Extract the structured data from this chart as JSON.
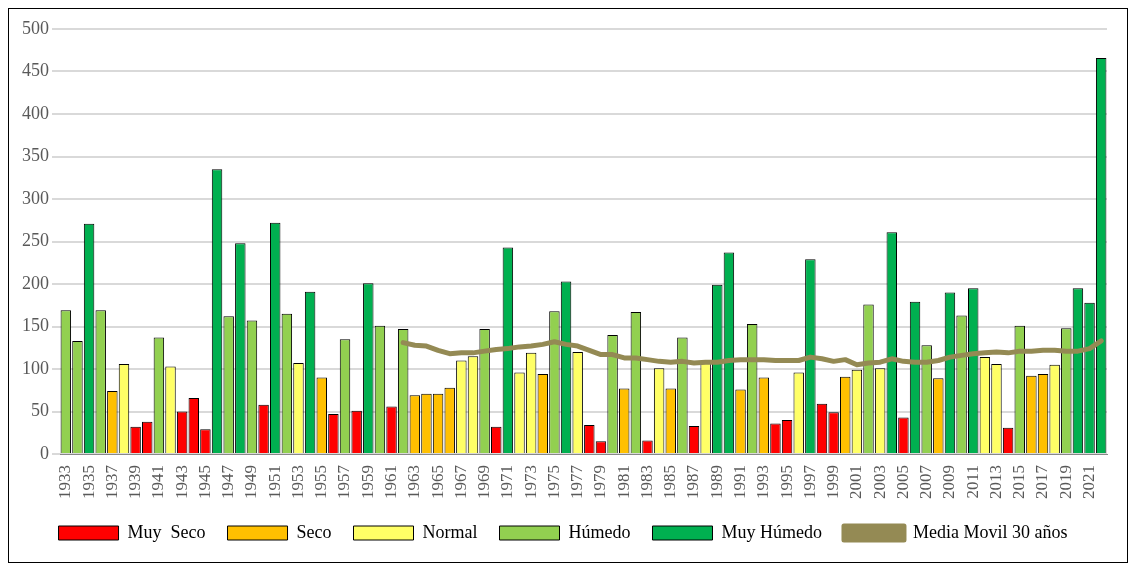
{
  "chart_data": {
    "type": "bar",
    "categories": [
      "1933",
      null,
      "1935",
      null,
      "1937",
      null,
      "1939",
      null,
      "1941",
      null,
      "1943",
      null,
      "1945",
      null,
      "1947",
      null,
      "1949",
      null,
      "1951",
      null,
      "1953",
      null,
      "1955",
      null,
      "1957",
      null,
      "1959",
      null,
      "1961",
      null,
      "1963",
      null,
      "1965",
      null,
      "1967",
      null,
      "1969",
      null,
      "1971",
      null,
      "1973",
      null,
      "1975",
      null,
      "1977",
      null,
      "1979",
      null,
      "1981",
      null,
      "1983",
      null,
      "1985",
      null,
      "1987",
      null,
      "1989",
      null,
      "1991",
      null,
      "1993",
      null,
      "1995",
      null,
      "1997",
      null,
      "1999",
      null,
      "2001",
      null,
      "2003",
      null,
      "2005",
      null,
      "2007",
      null,
      "2009",
      null,
      "2011",
      null,
      "2013",
      null,
      "2015",
      null,
      "2017",
      null,
      "2019",
      null,
      "2021",
      null
    ],
    "series": [
      {
        "name": "Muy  Seco",
        "color": "#ff0000",
        "values": [
          null,
          null,
          null,
          null,
          null,
          null,
          32,
          38,
          null,
          null,
          50,
          66,
          29,
          null,
          null,
          null,
          null,
          58,
          null,
          null,
          null,
          null,
          null,
          47,
          null,
          51,
          null,
          null,
          56,
          null,
          null,
          null,
          null,
          null,
          null,
          null,
          null,
          32,
          null,
          null,
          null,
          null,
          null,
          null,
          null,
          34,
          15,
          null,
          null,
          null,
          16,
          null,
          null,
          null,
          33,
          null,
          null,
          null,
          null,
          null,
          null,
          36,
          40,
          null,
          null,
          59,
          49,
          null,
          null,
          null,
          null,
          null,
          43,
          null,
          null,
          null,
          null,
          null,
          null,
          null,
          null,
          31,
          null,
          null,
          null,
          null,
          null,
          null,
          null,
          null
        ]
      },
      {
        "name": "Seco",
        "color": "#ffc000",
        "values": [
          null,
          null,
          null,
          null,
          74,
          null,
          null,
          null,
          null,
          null,
          null,
          null,
          null,
          null,
          null,
          null,
          null,
          null,
          null,
          null,
          null,
          null,
          90,
          null,
          null,
          null,
          null,
          null,
          null,
          null,
          69,
          71,
          71,
          78,
          null,
          null,
          null,
          null,
          null,
          null,
          null,
          94,
          null,
          null,
          null,
          null,
          null,
          null,
          77,
          null,
          null,
          null,
          77,
          null,
          null,
          null,
          null,
          null,
          76,
          null,
          90,
          null,
          null,
          null,
          null,
          null,
          null,
          91,
          null,
          null,
          null,
          null,
          null,
          null,
          null,
          89,
          null,
          null,
          null,
          null,
          null,
          null,
          null,
          92,
          94,
          null,
          null,
          null,
          null,
          null
        ]
      },
      {
        "name": "Normal",
        "color": "#ffff66",
        "values": [
          null,
          null,
          null,
          null,
          null,
          106,
          null,
          null,
          null,
          103,
          null,
          null,
          null,
          null,
          null,
          null,
          null,
          null,
          null,
          null,
          107,
          null,
          null,
          null,
          null,
          null,
          null,
          null,
          null,
          null,
          null,
          null,
          null,
          null,
          110,
          115,
          null,
          null,
          null,
          96,
          119,
          null,
          null,
          null,
          120,
          null,
          null,
          null,
          null,
          null,
          null,
          101,
          null,
          null,
          null,
          107,
          null,
          null,
          null,
          null,
          null,
          null,
          null,
          96,
          null,
          null,
          null,
          null,
          99,
          null,
          101,
          null,
          null,
          null,
          null,
          null,
          null,
          null,
          null,
          114,
          106,
          null,
          null,
          null,
          null,
          105,
          null,
          null,
          null,
          null
        ]
      },
      {
        "name": "Húmedo",
        "color": "#92d050",
        "values": [
          169,
          133,
          null,
          169,
          null,
          null,
          null,
          null,
          137,
          null,
          null,
          null,
          null,
          null,
          162,
          null,
          157,
          null,
          null,
          165,
          null,
          null,
          null,
          null,
          135,
          null,
          null,
          151,
          null,
          147,
          null,
          null,
          null,
          null,
          null,
          null,
          147,
          null,
          null,
          null,
          null,
          null,
          168,
          null,
          null,
          null,
          null,
          140,
          null,
          167,
          null,
          null,
          null,
          137,
          null,
          null,
          null,
          null,
          null,
          153,
          null,
          null,
          null,
          null,
          null,
          null,
          null,
          null,
          null,
          176,
          null,
          null,
          null,
          null,
          128,
          null,
          null,
          163,
          null,
          null,
          null,
          null,
          151,
          null,
          null,
          null,
          148,
          null,
          null,
          null
        ]
      },
      {
        "name": "Muy Húmedo",
        "color": "#00b050",
        "values": [
          null,
          null,
          271,
          null,
          null,
          null,
          null,
          null,
          null,
          null,
          null,
          null,
          null,
          335,
          null,
          248,
          null,
          null,
          272,
          null,
          null,
          191,
          null,
          null,
          null,
          null,
          201,
          null,
          null,
          null,
          null,
          null,
          null,
          null,
          null,
          null,
          null,
          null,
          243,
          null,
          null,
          null,
          null,
          203,
          null,
          null,
          null,
          null,
          null,
          null,
          null,
          null,
          null,
          null,
          null,
          null,
          199,
          237,
          null,
          null,
          null,
          null,
          null,
          null,
          229,
          null,
          null,
          null,
          null,
          null,
          null,
          261,
          null,
          179,
          null,
          null,
          190,
          null,
          195,
          null,
          null,
          null,
          null,
          null,
          null,
          null,
          null,
          195,
          178,
          466
        ]
      },
      {
        "name": "Media Movil 30 años",
        "type": "line",
        "color": "#948a54",
        "values": [
          null,
          null,
          null,
          null,
          null,
          null,
          null,
          null,
          null,
          null,
          null,
          null,
          null,
          null,
          null,
          null,
          null,
          null,
          null,
          null,
          null,
          null,
          null,
          null,
          null,
          null,
          null,
          null,
          null,
          131,
          128,
          127,
          122,
          118,
          119,
          119,
          121,
          123,
          124,
          126,
          127,
          129,
          132,
          129,
          127,
          122,
          117,
          117,
          113,
          113,
          111,
          109,
          108,
          109,
          107,
          108,
          108,
          110,
          111,
          111,
          111,
          110,
          110,
          110,
          114,
          112,
          109,
          111,
          105,
          107,
          108,
          112,
          109,
          108,
          108,
          110,
          114,
          116,
          118,
          119,
          120,
          119,
          121,
          121,
          122,
          122,
          121,
          121,
          124,
          133
        ]
      }
    ],
    "ylim": [
      0,
      500
    ],
    "yticks": [
      0,
      50,
      100,
      150,
      200,
      250,
      300,
      350,
      400,
      450,
      500
    ],
    "grid": "y",
    "legend": "bottom"
  }
}
